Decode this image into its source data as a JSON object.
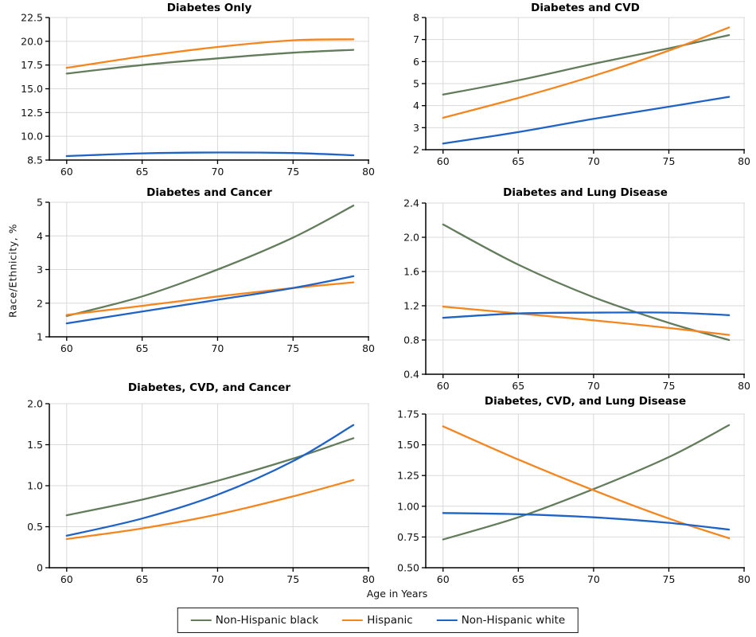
{
  "figure": {
    "xlabel": "Age in Years",
    "ylabel": "Race/Ethnicity, %",
    "background_color": "#ffffff",
    "grid_color": "#d9d9d9",
    "axis_color": "#000000",
    "tick_label_color": "#111111"
  },
  "legend": {
    "position": "bottom-center",
    "items": [
      {
        "label": "Non-Hispanic black",
        "color": "#637c5c"
      },
      {
        "label": "Hispanic",
        "color": "#f5861f"
      },
      {
        "label": "Non-Hispanic white",
        "color": "#2063c6"
      }
    ]
  },
  "chart_data": [
    {
      "type": "line",
      "title": "Diabetes Only",
      "x": [
        60,
        65,
        70,
        75,
        79
      ],
      "xticks": [
        60,
        65,
        70,
        75,
        80
      ],
      "xlim": [
        60,
        80
      ],
      "ylim": [
        8.5,
        22.5
      ],
      "yticks": [
        8.5,
        10.0,
        12.5,
        15.0,
        17.5,
        20.0,
        22.5
      ],
      "ytick_labels": [
        "8.5",
        "10.0",
        "12.5",
        "15.0",
        "17.5",
        "20.0",
        "22.5"
      ],
      "grid": true,
      "series": [
        {
          "name": "Non-Hispanic black",
          "values": [
            16.6,
            17.5,
            18.2,
            18.8,
            19.1
          ]
        },
        {
          "name": "Hispanic",
          "values": [
            17.2,
            18.4,
            19.4,
            20.1,
            20.2
          ]
        },
        {
          "name": "Non-Hispanic white",
          "values": [
            8.75,
            8.92,
            8.98,
            8.94,
            8.8
          ]
        }
      ]
    },
    {
      "type": "line",
      "title": "Diabetes and CVD",
      "x": [
        60,
        65,
        70,
        75,
        79
      ],
      "xticks": [
        60,
        65,
        70,
        75,
        80
      ],
      "xlim": [
        60,
        80
      ],
      "ylim": [
        2,
        8
      ],
      "yticks": [
        2,
        3,
        4,
        5,
        6,
        7,
        8
      ],
      "ytick_labels": [
        "2",
        "3",
        "4",
        "5",
        "6",
        "7",
        "8"
      ],
      "grid": true,
      "series": [
        {
          "name": "Non-Hispanic black",
          "values": [
            4.5,
            5.15,
            5.9,
            6.6,
            7.2
          ]
        },
        {
          "name": "Hispanic",
          "values": [
            3.45,
            4.35,
            5.35,
            6.5,
            7.55
          ]
        },
        {
          "name": "Non-Hispanic white",
          "values": [
            2.28,
            2.8,
            3.4,
            3.95,
            4.4
          ]
        }
      ]
    },
    {
      "type": "line",
      "title": "Diabetes and Cancer",
      "x": [
        60,
        65,
        70,
        75,
        79
      ],
      "xticks": [
        60,
        65,
        70,
        75,
        80
      ],
      "xlim": [
        60,
        80
      ],
      "ylim": [
        1,
        5
      ],
      "yticks": [
        1,
        2,
        3,
        4,
        5
      ],
      "ytick_labels": [
        "1",
        "2",
        "3",
        "4",
        "5"
      ],
      "grid": true,
      "series": [
        {
          "name": "Non-Hispanic black",
          "values": [
            1.62,
            2.2,
            3.0,
            3.95,
            4.9
          ]
        },
        {
          "name": "Hispanic",
          "values": [
            1.65,
            1.92,
            2.2,
            2.45,
            2.62
          ]
        },
        {
          "name": "Non-Hispanic white",
          "values": [
            1.4,
            1.75,
            2.1,
            2.45,
            2.8
          ]
        }
      ]
    },
    {
      "type": "line",
      "title": "Diabetes and Lung Disease",
      "x": [
        60,
        65,
        70,
        75,
        79
      ],
      "xticks": [
        60,
        65,
        70,
        75,
        80
      ],
      "xlim": [
        60,
        80
      ],
      "ylim": [
        0.4,
        2.4
      ],
      "yticks": [
        0.4,
        0.8,
        1.2,
        1.6,
        2.0,
        2.4
      ],
      "ytick_labels": [
        "0.4",
        "0.8",
        "1.2",
        "1.6",
        "2.0",
        "2.4"
      ],
      "grid": true,
      "series": [
        {
          "name": "Non-Hispanic black",
          "values": [
            2.15,
            1.68,
            1.3,
            1.0,
            0.8
          ]
        },
        {
          "name": "Hispanic",
          "values": [
            1.19,
            1.11,
            1.03,
            0.94,
            0.86
          ]
        },
        {
          "name": "Non-Hispanic white",
          "values": [
            1.06,
            1.11,
            1.12,
            1.12,
            1.09
          ]
        }
      ]
    },
    {
      "type": "line",
      "title": "Diabetes, CVD, and Cancer",
      "x": [
        60,
        65,
        70,
        75,
        79
      ],
      "xticks": [
        60,
        65,
        70,
        75,
        80
      ],
      "xlim": [
        60,
        80
      ],
      "ylim": [
        0,
        2.0
      ],
      "yticks": [
        0,
        0.5,
        1.0,
        1.5,
        2.0
      ],
      "ytick_labels": [
        "0",
        "0.5",
        "1.0",
        "1.5",
        "2.0"
      ],
      "grid": true,
      "series": [
        {
          "name": "Non-Hispanic black",
          "values": [
            0.64,
            0.83,
            1.06,
            1.33,
            1.58
          ]
        },
        {
          "name": "Hispanic",
          "values": [
            0.35,
            0.48,
            0.65,
            0.87,
            1.07
          ]
        },
        {
          "name": "Non-Hispanic white",
          "values": [
            0.39,
            0.6,
            0.89,
            1.3,
            1.74
          ]
        }
      ]
    },
    {
      "type": "line",
      "title": "Diabetes, CVD, and Lung Disease",
      "x": [
        60,
        65,
        70,
        75,
        79
      ],
      "xticks": [
        60,
        65,
        70,
        75,
        80
      ],
      "xlim": [
        60,
        80
      ],
      "ylim": [
        0.5,
        1.75
      ],
      "yticks": [
        0.5,
        0.75,
        1.0,
        1.25,
        1.5,
        1.75
      ],
      "ytick_labels": [
        "0.50",
        "0.75",
        "1.00",
        "1.25",
        "1.50",
        "1.75"
      ],
      "grid": true,
      "series": [
        {
          "name": "Non-Hispanic black",
          "values": [
            0.73,
            0.91,
            1.14,
            1.4,
            1.66
          ]
        },
        {
          "name": "Hispanic",
          "values": [
            1.65,
            1.38,
            1.13,
            0.9,
            0.74
          ]
        },
        {
          "name": "Non-Hispanic white",
          "values": [
            0.945,
            0.935,
            0.91,
            0.865,
            0.81
          ]
        }
      ]
    }
  ]
}
